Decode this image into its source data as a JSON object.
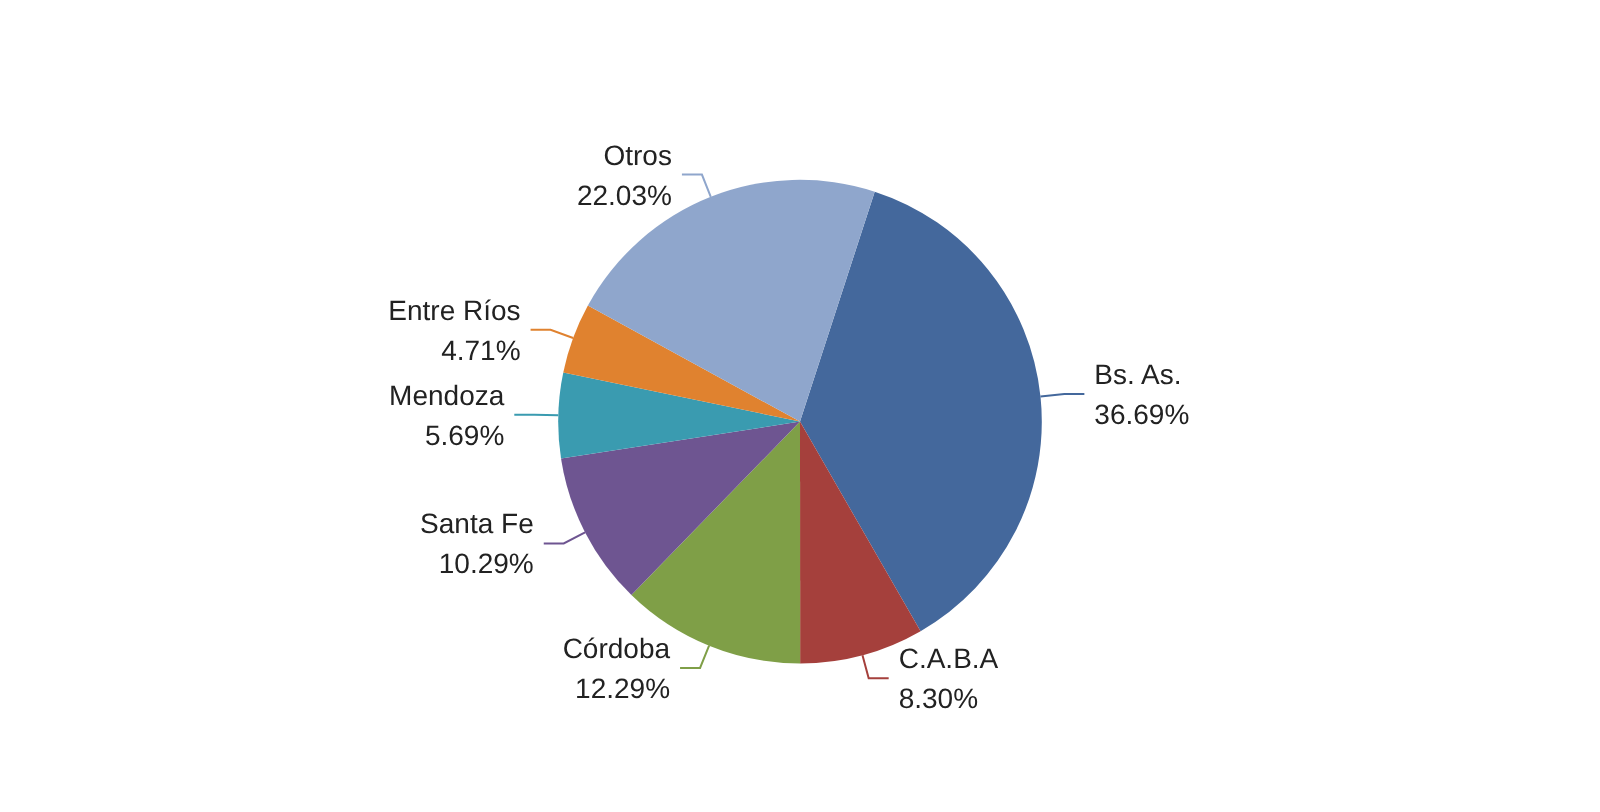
{
  "chart_data": {
    "type": "pie",
    "categories": [
      "Bs. As.",
      "C.A.B.A",
      "Córdoba",
      "Santa Fe",
      "Mendoza",
      "Entre Ríos",
      "Otros"
    ],
    "values": [
      36.69,
      8.3,
      12.29,
      10.29,
      5.69,
      4.71,
      22.03
    ],
    "value_labels": [
      "36.69%",
      "8.30%",
      "12.29%",
      "10.29%",
      "5.69%",
      "4.71%",
      "22.03%"
    ],
    "colors": [
      "#44689c",
      "#a5403c",
      "#7f9f47",
      "#6e5591",
      "#3a9bb0",
      "#e0822f",
      "#8fa6cc"
    ],
    "legend": false
  }
}
